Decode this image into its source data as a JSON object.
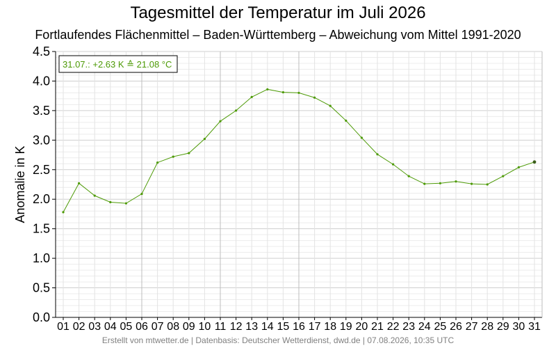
{
  "header": {
    "title": "Tagesmittel der Temperatur im Juli 2026",
    "subtitle": "Fortlaufendes Flächenmittel – Baden-Württemberg – Abweichung vom Mittel 1991-2020"
  },
  "footer": {
    "text": "Erstellt von mtwetter.de | Datenbasis: Deutscher Wetterdienst, dwd.de | 07.08.2026, 10:35 UTC"
  },
  "annotation": {
    "text": "31.07.: +2.63 K ≙ 21.08 °C"
  },
  "chart_data": {
    "type": "line",
    "title": "Tagesmittel der Temperatur im Juli 2026",
    "subtitle": "Fortlaufendes Flächenmittel – Baden-Württemberg – Abweichung vom Mittel 1991-2020",
    "xlabel": "",
    "ylabel": "Anomalie in K",
    "categories": [
      "01",
      "02",
      "03",
      "04",
      "05",
      "06",
      "07",
      "08",
      "09",
      "10",
      "11",
      "12",
      "13",
      "14",
      "15",
      "16",
      "17",
      "18",
      "19",
      "20",
      "21",
      "22",
      "23",
      "24",
      "25",
      "26",
      "27",
      "28",
      "29",
      "30",
      "31"
    ],
    "series": [
      {
        "values": [
          1.78,
          2.27,
          2.06,
          1.95,
          1.93,
          2.09,
          2.62,
          2.72,
          2.78,
          3.02,
          3.32,
          3.5,
          3.73,
          3.86,
          3.81,
          3.8,
          3.72,
          3.58,
          3.33,
          3.04,
          2.76,
          2.59,
          2.39,
          2.26,
          2.27,
          2.3,
          2.26,
          2.25,
          2.39,
          2.54,
          2.63
        ],
        "color": "#4d9a06"
      }
    ],
    "ylim": [
      0,
      4.5
    ],
    "yticks": [
      "0.0",
      "0.5",
      "1.0",
      "1.5",
      "2.0",
      "2.5",
      "3.0",
      "3.5",
      "4.0",
      "4.5"
    ],
    "grid": true,
    "major_vlines_at": [
      "06",
      "11",
      "16"
    ]
  }
}
